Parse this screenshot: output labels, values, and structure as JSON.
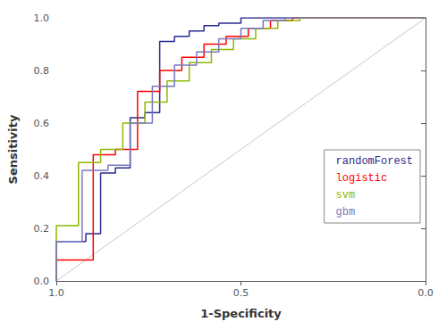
{
  "chart_data": {
    "type": "line",
    "xlabel": "1-Specificity",
    "ylabel": "Sensitivity",
    "xlim": [
      1.0,
      0.0
    ],
    "ylim": [
      0.0,
      1.0
    ],
    "xticks": [
      {
        "value": 1.0,
        "label": "1.0"
      },
      0.5,
      {
        "value": 0.0,
        "label": "0.0"
      }
    ],
    "yticks": [
      {
        "value": 0.0,
        "label": "0.0"
      },
      0.2,
      0.4,
      0.6,
      0.8,
      {
        "value": 1.0,
        "label": "1.0"
      }
    ],
    "grid": false,
    "legend": "lower right",
    "reference_line": {
      "x": [
        1.0,
        0.0
      ],
      "y": [
        0.0,
        1.0
      ],
      "color": "#c8c8c8"
    },
    "series": [
      {
        "name": "randomForest",
        "color": "#2a2a8f",
        "x": [
          1.0,
          1.0,
          0.92,
          0.92,
          0.88,
          0.88,
          0.84,
          0.84,
          0.8,
          0.8,
          0.76,
          0.76,
          0.72,
          0.72,
          0.68,
          0.68,
          0.64,
          0.64,
          0.6,
          0.6,
          0.56,
          0.56,
          0.5,
          0.5,
          0.4,
          0.4,
          0.3,
          0.3,
          0.0
        ],
        "values": [
          0.0,
          0.15,
          0.15,
          0.18,
          0.18,
          0.41,
          0.41,
          0.43,
          0.43,
          0.62,
          0.62,
          0.64,
          0.64,
          0.91,
          0.91,
          0.93,
          0.93,
          0.95,
          0.95,
          0.97,
          0.97,
          0.98,
          0.98,
          1.0,
          1.0,
          1.0,
          1.0,
          1.0,
          1.0
        ]
      },
      {
        "name": "logistic",
        "color": "#ff0000",
        "x": [
          1.0,
          1.0,
          0.9,
          0.9,
          0.84,
          0.84,
          0.78,
          0.78,
          0.72,
          0.72,
          0.66,
          0.66,
          0.6,
          0.6,
          0.54,
          0.54,
          0.48,
          0.48,
          0.42,
          0.42,
          0.36,
          0.36,
          0.3,
          0.3,
          0.0
        ],
        "values": [
          0.0,
          0.08,
          0.08,
          0.48,
          0.48,
          0.5,
          0.5,
          0.72,
          0.72,
          0.8,
          0.8,
          0.85,
          0.85,
          0.9,
          0.9,
          0.93,
          0.93,
          0.96,
          0.96,
          0.99,
          0.99,
          1.0,
          1.0,
          1.0,
          1.0
        ]
      },
      {
        "name": "svm",
        "color": "#8db800",
        "x": [
          1.0,
          1.0,
          0.94,
          0.94,
          0.88,
          0.88,
          0.82,
          0.82,
          0.76,
          0.76,
          0.7,
          0.7,
          0.64,
          0.64,
          0.58,
          0.58,
          0.52,
          0.52,
          0.46,
          0.46,
          0.4,
          0.4,
          0.34,
          0.34,
          0.28,
          0.28,
          0.0
        ],
        "values": [
          0.0,
          0.21,
          0.21,
          0.45,
          0.45,
          0.5,
          0.5,
          0.6,
          0.6,
          0.68,
          0.68,
          0.76,
          0.76,
          0.83,
          0.83,
          0.88,
          0.88,
          0.92,
          0.92,
          0.96,
          0.96,
          0.99,
          0.99,
          1.0,
          1.0,
          1.0,
          1.0
        ]
      },
      {
        "name": "gbm",
        "color": "#7878c0",
        "x": [
          1.0,
          1.0,
          0.93,
          0.93,
          0.86,
          0.86,
          0.8,
          0.8,
          0.74,
          0.74,
          0.68,
          0.68,
          0.62,
          0.62,
          0.56,
          0.56,
          0.5,
          0.5,
          0.44,
          0.44,
          0.38,
          0.38,
          0.32,
          0.32,
          0.0
        ],
        "values": [
          0.0,
          0.15,
          0.15,
          0.42,
          0.42,
          0.44,
          0.44,
          0.6,
          0.6,
          0.74,
          0.74,
          0.82,
          0.82,
          0.87,
          0.87,
          0.92,
          0.92,
          0.96,
          0.96,
          0.99,
          0.99,
          1.0,
          1.0,
          1.0,
          1.0
        ]
      }
    ]
  }
}
